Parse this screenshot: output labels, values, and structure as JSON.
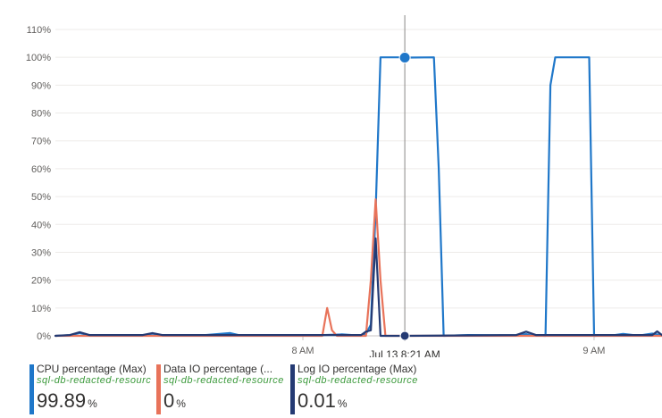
{
  "chart_data": {
    "type": "line",
    "y_ticks": [
      "110%",
      "100%",
      "90%",
      "80%",
      "70%",
      "60%",
      "50%",
      "40%",
      "30%",
      "20%",
      "10%",
      "0%"
    ],
    "ylim": [
      0,
      110
    ],
    "x_ticks": [
      {
        "label": "8 AM",
        "t": 0
      },
      {
        "label": "9 AM",
        "t": 60
      }
    ],
    "xlim": [
      -51,
      74
    ],
    "cursor": {
      "label": "Jul 13 8:21 AM",
      "t": 21
    },
    "grid": true,
    "series": [
      {
        "name": "CPU percentage (Max)",
        "color": "#1f77c9",
        "points": [
          [
            -51,
            0
          ],
          [
            -48,
            0.2
          ],
          [
            -46,
            1
          ],
          [
            -44,
            0.2
          ],
          [
            -36,
            0.3
          ],
          [
            -28,
            0.2
          ],
          [
            -20,
            0.3
          ],
          [
            -15,
            1
          ],
          [
            -13,
            0.2
          ],
          [
            -5,
            0.3
          ],
          [
            3,
            0.2
          ],
          [
            8,
            0.5
          ],
          [
            10,
            0.3
          ],
          [
            12,
            0.3
          ],
          [
            13,
            0.7
          ],
          [
            14,
            4
          ],
          [
            15,
            45
          ],
          [
            16,
            100
          ],
          [
            20,
            100
          ],
          [
            21,
            99.89
          ],
          [
            27,
            100
          ],
          [
            28,
            60
          ],
          [
            29,
            0
          ],
          [
            34,
            0.3
          ],
          [
            40,
            0.2
          ],
          [
            44,
            0.2
          ],
          [
            46,
            0.6
          ],
          [
            47,
            0.2
          ],
          [
            50,
            0
          ],
          [
            51,
            90
          ],
          [
            52,
            100
          ],
          [
            59,
            100
          ],
          [
            60,
            0
          ],
          [
            64,
            0.2
          ],
          [
            66,
            0.7
          ],
          [
            68,
            0.3
          ],
          [
            70,
            0.3
          ],
          [
            72,
            0.8
          ],
          [
            74,
            0.2
          ]
        ]
      },
      {
        "name": "Data IO percentage (...",
        "color": "#e8735a",
        "points": [
          [
            -51,
            0
          ],
          [
            4,
            0
          ],
          [
            5,
            10
          ],
          [
            6,
            2
          ],
          [
            7,
            0
          ],
          [
            11,
            0
          ],
          [
            13,
            0
          ],
          [
            14,
            20
          ],
          [
            15,
            49
          ],
          [
            16,
            20
          ],
          [
            17,
            0
          ],
          [
            21,
            0
          ],
          [
            74,
            0
          ]
        ]
      },
      {
        "name": "Log IO percentage (Max)",
        "color": "#243a73",
        "points": [
          [
            -51,
            0
          ],
          [
            -48,
            0.3
          ],
          [
            -46,
            1.3
          ],
          [
            -44,
            0.3
          ],
          [
            -33,
            0.3
          ],
          [
            -31,
            1
          ],
          [
            -29,
            0.3
          ],
          [
            8,
            0.3
          ],
          [
            12,
            0.3
          ],
          [
            13,
            1.5
          ],
          [
            14,
            2
          ],
          [
            15,
            35
          ],
          [
            16,
            0
          ],
          [
            21,
            0.01
          ],
          [
            44,
            0.3
          ],
          [
            46,
            1.5
          ],
          [
            48,
            0.3
          ],
          [
            72,
            0.3
          ],
          [
            73,
            1.6
          ],
          [
            74,
            0.3
          ]
        ]
      }
    ]
  },
  "legend": [
    {
      "name": "CPU percentage (Max)",
      "resource": "sql-db-redacted-resource",
      "value": "99.89",
      "unit": "%",
      "color": "#1f77c9"
    },
    {
      "name": "Data IO percentage (...",
      "resource": "sql-db-redacted-resource",
      "value": "0",
      "unit": "%",
      "color": "#e8735a"
    },
    {
      "name": "Log IO percentage (Max)",
      "resource": "sql-db-redacted-resource",
      "value": "0.01",
      "unit": "%",
      "color": "#243a73"
    }
  ]
}
